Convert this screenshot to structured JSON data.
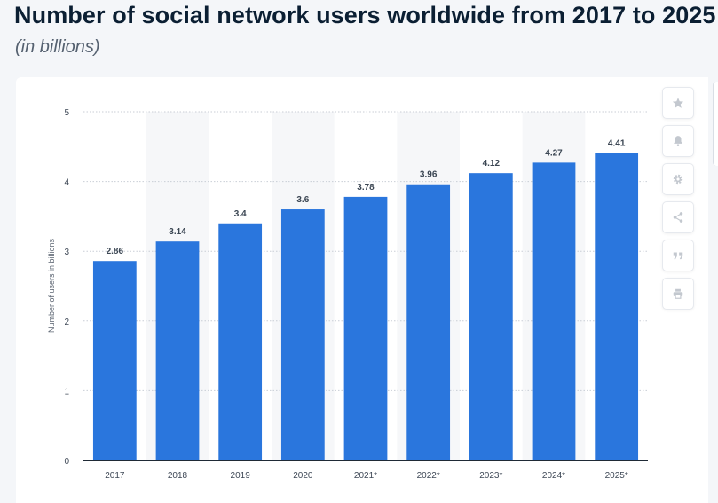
{
  "header": {
    "title": "Number of social network users worldwide from 2017 to 2025",
    "subtitle": "(in billions)"
  },
  "toolbar": {
    "icons": [
      "star-icon",
      "bell-icon",
      "gear-icon",
      "share-icon",
      "quote-icon",
      "print-icon"
    ]
  },
  "colors": {
    "bar": "#2a76dd",
    "grid": "#c9ced6",
    "band": "#f6f7f9",
    "label": "#3b4653"
  },
  "chart_data": {
    "type": "bar",
    "categories": [
      "2017",
      "2018",
      "2019",
      "2020",
      "2021*",
      "2022*",
      "2023*",
      "2024*",
      "2025*"
    ],
    "values": [
      2.86,
      3.14,
      3.4,
      3.6,
      3.78,
      3.96,
      4.12,
      4.27,
      4.41
    ],
    "value_labels": [
      "2.86",
      "3.14",
      "3.4",
      "3.6",
      "3.78",
      "3.96",
      "4.12",
      "4.27",
      "4.41"
    ],
    "title": "Number of social network users worldwide from 2017 to 2025",
    "subtitle": "(in billions)",
    "xlabel": "",
    "ylabel": "Number of users in billions",
    "ylim": [
      0,
      5
    ],
    "yticks": [
      0,
      1,
      2,
      3,
      4,
      5
    ],
    "grid": "horizontal dotted",
    "legend": "none"
  }
}
